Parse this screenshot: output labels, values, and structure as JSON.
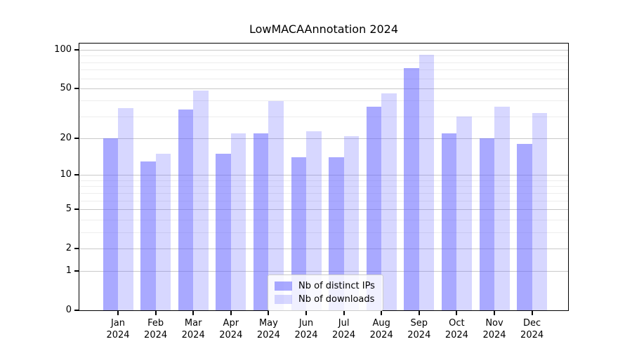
{
  "chart_data": {
    "type": "bar",
    "title": "LowMACAAnnotation 2024",
    "categories": [
      "Jan",
      "Feb",
      "Mar",
      "Apr",
      "May",
      "Jun",
      "Jul",
      "Aug",
      "Sep",
      "Oct",
      "Nov",
      "Dec"
    ],
    "year_label": "2024",
    "series": [
      {
        "name": "Nb of distinct IPs",
        "fill": "rgba(102,102,255,0.56)",
        "values": [
          20,
          13,
          34,
          15,
          22,
          14,
          14,
          36,
          72,
          22,
          20,
          18
        ]
      },
      {
        "name": "Nb of downloads",
        "fill": "rgba(102,102,255,0.26)",
        "values": [
          35,
          15,
          48,
          22,
          40,
          23,
          21,
          46,
          92,
          30,
          36,
          32
        ]
      }
    ],
    "yscale": "log1p",
    "ylim": [
      0,
      112
    ],
    "yticks_major": [
      0,
      1,
      2,
      5,
      10,
      20,
      50,
      100
    ],
    "yticks_minor": [
      3,
      4,
      6,
      7,
      8,
      9,
      30,
      40,
      60,
      70,
      80,
      90
    ],
    "grid": true,
    "legend_position": "lower center",
    "colors": {
      "bar_dark_on_white": "#a9a9f7",
      "bar_light_on_white": "#d7d7f7",
      "grid_major": "#c9c9c9",
      "grid_minor": "#ededed",
      "axis": "#000000"
    }
  }
}
